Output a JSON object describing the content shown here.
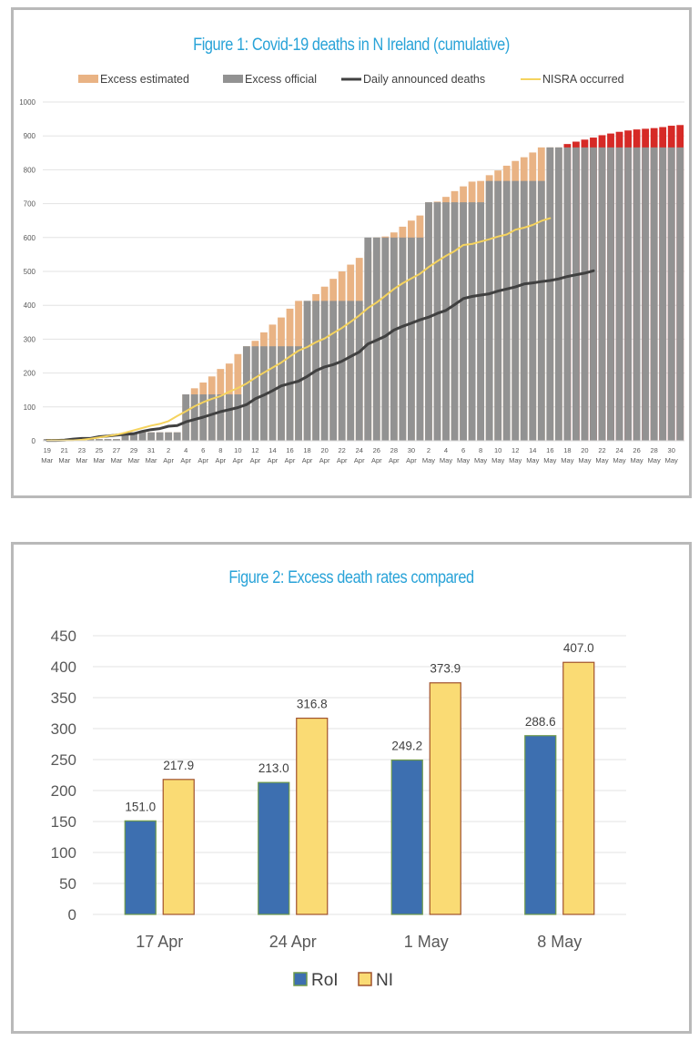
{
  "chart_data": [
    {
      "type": "bar",
      "title": "Figure 1: Covid-19 deaths in N Ireland (cumulative)",
      "xlabel": "",
      "ylabel": "",
      "ylim": [
        0,
        1000
      ],
      "yticks": [
        0,
        100,
        200,
        300,
        400,
        500,
        600,
        700,
        800,
        900,
        1000
      ],
      "grid": true,
      "legend_position": "top",
      "x_tick_labels": [
        [
          "19",
          "Mar"
        ],
        [
          "21",
          "Mar"
        ],
        [
          "23",
          "Mar"
        ],
        [
          "25",
          "Mar"
        ],
        [
          "27",
          "Mar"
        ],
        [
          "29",
          "Mar"
        ],
        [
          "31",
          "Mar"
        ],
        [
          "2",
          "Apr"
        ],
        [
          "4",
          "Apr"
        ],
        [
          "6",
          "Apr"
        ],
        [
          "8",
          "Apr"
        ],
        [
          "10",
          "Apr"
        ],
        [
          "12",
          "Apr"
        ],
        [
          "14",
          "Apr"
        ],
        [
          "16",
          "Apr"
        ],
        [
          "18",
          "Apr"
        ],
        [
          "20",
          "Apr"
        ],
        [
          "22",
          "Apr"
        ],
        [
          "24",
          "Apr"
        ],
        [
          "26",
          "Apr"
        ],
        [
          "28",
          "Apr"
        ],
        [
          "30",
          "Apr"
        ],
        [
          "2",
          "May"
        ],
        [
          "4",
          "May"
        ],
        [
          "6",
          "May"
        ],
        [
          "8",
          "May"
        ],
        [
          "10",
          "May"
        ],
        [
          "12",
          "May"
        ],
        [
          "14",
          "May"
        ],
        [
          "16",
          "May"
        ],
        [
          "18",
          "May"
        ],
        [
          "20",
          "May"
        ],
        [
          "22",
          "May"
        ],
        [
          "24",
          "May"
        ],
        [
          "26",
          "May"
        ],
        [
          "28",
          "May"
        ],
        [
          "30",
          "May"
        ]
      ],
      "x_start": "19 Mar",
      "x_end": "31 May",
      "legend": [
        {
          "name": "Excess estimated",
          "kind": "bar",
          "color": "#e9b384"
        },
        {
          "name": "Excess official",
          "kind": "bar",
          "color": "#929292"
        },
        {
          "name": "Daily announced deaths",
          "kind": "line",
          "color": "#404040"
        },
        {
          "name": "NISRA occurred",
          "kind": "line",
          "color": "#f5d35e"
        }
      ],
      "projection_color": "#d62a26",
      "series": [
        {
          "name": "Excess official",
          "values": [
            5,
            5,
            5,
            5,
            5,
            5,
            5,
            5,
            5,
            20,
            25,
            25,
            25,
            25,
            25,
            25,
            137,
            137,
            137,
            137,
            137,
            137,
            137,
            279,
            279,
            279,
            279,
            279,
            279,
            279,
            413,
            413,
            413,
            413,
            413,
            413,
            413,
            600,
            600,
            600,
            600,
            600,
            600,
            600,
            704,
            704,
            704,
            704,
            704,
            704,
            704,
            767,
            767,
            767,
            767,
            767,
            767,
            767,
            866,
            866,
            866,
            866,
            866,
            866,
            866,
            866,
            866,
            866,
            866,
            866,
            866,
            866,
            866,
            866
          ]
        },
        {
          "name": "Excess estimated (total height)",
          "values": [
            5,
            5,
            5,
            5,
            5,
            5,
            5,
            5,
            5,
            20,
            25,
            25,
            25,
            25,
            25,
            25,
            137,
            155,
            172,
            190,
            212,
            228,
            256,
            279,
            295,
            320,
            343,
            364,
            390,
            413,
            413,
            433,
            455,
            478,
            500,
            520,
            540,
            558,
            600,
            603,
            615,
            632,
            650,
            665,
            704,
            706,
            720,
            737,
            751,
            765,
            767,
            784,
            798,
            812,
            826,
            837,
            851,
            866,
            866,
            866
          ]
        },
        {
          "name": "Projected (red, total height)",
          "values": [
            null,
            null,
            null,
            null,
            null,
            null,
            null,
            null,
            null,
            null,
            null,
            null,
            null,
            null,
            null,
            null,
            null,
            null,
            null,
            null,
            null,
            null,
            null,
            null,
            null,
            null,
            null,
            null,
            null,
            null,
            null,
            null,
            null,
            null,
            null,
            null,
            null,
            null,
            null,
            null,
            null,
            null,
            null,
            null,
            null,
            null,
            null,
            null,
            null,
            null,
            null,
            null,
            null,
            null,
            null,
            null,
            null,
            null,
            null,
            null,
            876,
            883,
            889,
            895,
            902,
            907,
            912,
            916,
            919,
            921,
            923,
            926,
            930,
            932
          ]
        },
        {
          "name": "Daily announced deaths",
          "values": [
            1,
            1,
            2,
            5,
            7,
            7,
            12,
            14,
            17,
            19,
            21,
            28,
            33,
            36,
            43,
            45,
            56,
            63,
            70,
            78,
            86,
            92,
            98,
            107,
            124,
            135,
            148,
            162,
            169,
            176,
            190,
            207,
            218,
            225,
            235,
            249,
            262,
            286,
            297,
            309,
            327,
            338,
            347,
            357,
            365,
            376,
            385,
            402,
            420,
            426,
            430,
            434,
            442,
            448,
            454,
            463,
            466,
            470,
            473,
            478,
            485,
            490,
            495,
            502
          ]
        },
        {
          "name": "NISRA occurred",
          "values": [
            1,
            1,
            1,
            1,
            3,
            6,
            10,
            14,
            18,
            24,
            31,
            38,
            45,
            50,
            58,
            73,
            87,
            102,
            114,
            124,
            132,
            145,
            156,
            169,
            186,
            201,
            216,
            231,
            249,
            266,
            277,
            291,
            302,
            318,
            333,
            351,
            370,
            392,
            408,
            428,
            448,
            465,
            479,
            493,
            513,
            530,
            546,
            560,
            578,
            581,
            588,
            595,
            603,
            609,
            623,
            629,
            637,
            649,
            657
          ]
        }
      ]
    },
    {
      "type": "bar",
      "title": "Figure 2: Excess death rates compared",
      "xlabel": "",
      "ylabel": "",
      "ylim": [
        0,
        450
      ],
      "yticks": [
        0,
        50,
        100,
        150,
        200,
        250,
        300,
        350,
        400,
        450
      ],
      "grid": true,
      "legend_position": "bottom",
      "categories": [
        "17 Apr",
        "24 Apr",
        "1 May",
        "8 May"
      ],
      "series": [
        {
          "name": "RoI",
          "values": [
            151.0,
            213.0,
            249.2,
            288.6
          ],
          "labels": [
            "151.0",
            "213.0",
            "249.2",
            "288.6"
          ],
          "color": "#3d6fb0",
          "edge": "#6e9a4a"
        },
        {
          "name": "NI",
          "values": [
            217.9,
            316.8,
            373.9,
            407.0
          ],
          "labels": [
            "217.9",
            "316.8",
            "373.9",
            "407.0"
          ],
          "color": "#fadb74",
          "edge": "#a0522d"
        }
      ]
    }
  ]
}
